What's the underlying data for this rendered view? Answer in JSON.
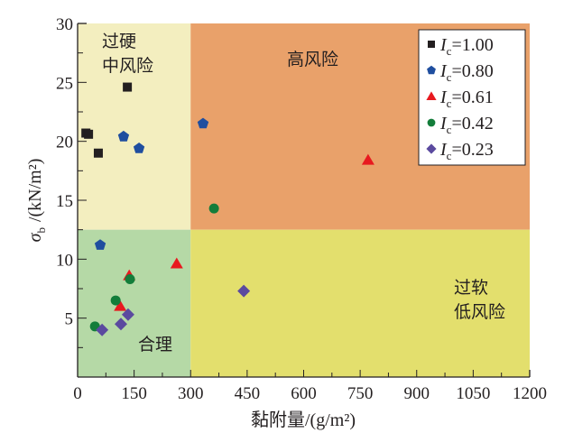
{
  "chart_data": {
    "type": "scatter",
    "title": "",
    "xlabel": "黏附量/(g/m²)",
    "ylabel_symbol": "σ",
    "ylabel_subscript": "b",
    "ylabel_unit": "/(kN/m²)",
    "xlim": [
      0,
      1200
    ],
    "ylim": [
      0,
      30
    ],
    "x_ticks": [
      0,
      150,
      300,
      450,
      600,
      750,
      900,
      1050,
      1200
    ],
    "x_tick_labels": [
      "0",
      "150",
      "300",
      "450",
      "600",
      "750",
      "900",
      "1050",
      "1200"
    ],
    "y_ticks": [
      5,
      10,
      15,
      20,
      25,
      30
    ],
    "y_tick_labels": [
      "5",
      "10",
      "15",
      "20",
      "25",
      "30"
    ],
    "grid": false,
    "legend_position": "top-right",
    "regions": [
      {
        "name": "过硬中风险",
        "lines": [
          "过硬",
          "中风险"
        ],
        "x_range": [
          0,
          300
        ],
        "y_range": [
          12.5,
          30
        ],
        "color": "#f3eebf"
      },
      {
        "name": "高风险",
        "lines": [
          "高风险"
        ],
        "x_range": [
          300,
          1200
        ],
        "y_range": [
          12.5,
          30
        ],
        "color": "#e9a16a"
      },
      {
        "name": "合理",
        "lines": [
          "合理"
        ],
        "x_range": [
          0,
          300
        ],
        "y_range": [
          0,
          12.5
        ],
        "color": "#b5d9a6"
      },
      {
        "name": "过软低风险",
        "lines": [
          "过软",
          "低风险"
        ],
        "x_range": [
          300,
          1200
        ],
        "y_range": [
          0,
          12.5
        ],
        "color": "#e3df6d"
      }
    ],
    "series": [
      {
        "name": "Ic=1.00",
        "label_var": "I",
        "label_sub": "c",
        "label_val": "=1.00",
        "marker": "square",
        "color": "#231f20",
        "points": [
          [
            22,
            20.7
          ],
          [
            29,
            20.6
          ],
          [
            55,
            19.0
          ],
          [
            132,
            24.6
          ]
        ]
      },
      {
        "name": "Ic=0.80",
        "label_var": "I",
        "label_sub": "c",
        "label_val": "=0.80",
        "marker": "pentagon",
        "color": "#1f4e9f",
        "points": [
          [
            60,
            11.2
          ],
          [
            122,
            20.4
          ],
          [
            163,
            19.4
          ],
          [
            333,
            21.5
          ]
        ]
      },
      {
        "name": "Ic=0.61",
        "label_var": "I",
        "label_sub": "c",
        "label_val": "=0.61",
        "marker": "triangle",
        "color": "#e8191f",
        "points": [
          [
            113,
            6.0
          ],
          [
            137,
            8.6
          ],
          [
            263,
            9.6
          ],
          [
            771,
            18.4
          ]
        ]
      },
      {
        "name": "Ic=0.42",
        "label_var": "I",
        "label_sub": "c",
        "label_val": "=0.42",
        "marker": "circle",
        "color": "#137d3a",
        "points": [
          [
            46,
            4.3
          ],
          [
            101,
            6.5
          ],
          [
            139,
            8.3
          ],
          [
            362,
            14.3
          ]
        ]
      },
      {
        "name": "Ic=0.23",
        "label_var": "I",
        "label_sub": "c",
        "label_val": "=0.23",
        "marker": "diamond",
        "color": "#5b4a9f",
        "points": [
          [
            65,
            4.0
          ],
          [
            115,
            4.5
          ],
          [
            134,
            5.3
          ],
          [
            441,
            7.3
          ]
        ]
      }
    ]
  }
}
